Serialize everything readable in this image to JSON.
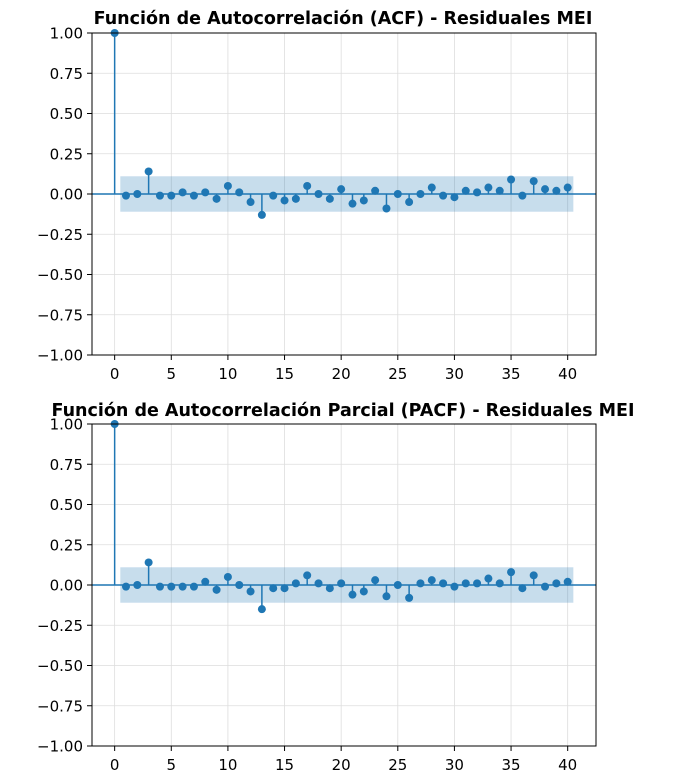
{
  "colors": {
    "series": "#1f77b4",
    "band": "#1f77b4",
    "grid": "#dddddd"
  },
  "chart_data": [
    {
      "type": "stem",
      "title": "Función de Autocorrelación (ACF) - Residuales MEI",
      "xlabel": "",
      "ylabel": "",
      "xlim": [
        -2,
        42.5
      ],
      "ylim": [
        -1.0,
        1.0
      ],
      "grid": true,
      "x_ticks": [
        "0",
        "5",
        "10",
        "15",
        "20",
        "25",
        "30",
        "35",
        "40"
      ],
      "y_ticks": [
        "1.00",
        "0.75",
        "0.50",
        "0.25",
        "0.00",
        "−0.25",
        "−0.50",
        "−0.75",
        "−1.00"
      ],
      "confidence_band": {
        "lower": -0.11,
        "upper": 0.11,
        "from_lag": 0.5,
        "to_lag": 40.5
      },
      "lags": [
        0,
        1,
        2,
        3,
        4,
        5,
        6,
        7,
        8,
        9,
        10,
        11,
        12,
        13,
        14,
        15,
        16,
        17,
        18,
        19,
        20,
        21,
        22,
        23,
        24,
        25,
        26,
        27,
        28,
        29,
        30,
        31,
        32,
        33,
        34,
        35,
        36,
        37,
        38,
        39,
        40
      ],
      "values": [
        1.0,
        -0.01,
        0.0,
        0.14,
        -0.01,
        -0.01,
        0.01,
        -0.01,
        0.01,
        -0.03,
        0.05,
        0.01,
        -0.05,
        -0.13,
        -0.01,
        -0.04,
        -0.03,
        0.05,
        0.0,
        -0.03,
        0.03,
        -0.06,
        -0.04,
        0.02,
        -0.09,
        0.0,
        -0.05,
        0.0,
        0.04,
        -0.01,
        -0.02,
        0.02,
        0.01,
        0.04,
        0.02,
        0.09,
        -0.01,
        0.08,
        0.03,
        0.02,
        0.04
      ]
    },
    {
      "type": "stem",
      "title": "Función de Autocorrelación Parcial (PACF) - Residuales MEI",
      "xlabel": "",
      "ylabel": "",
      "xlim": [
        -2,
        42.5
      ],
      "ylim": [
        -1.0,
        1.0
      ],
      "grid": true,
      "x_ticks": [
        "0",
        "5",
        "10",
        "15",
        "20",
        "25",
        "30",
        "35",
        "40"
      ],
      "y_ticks": [
        "1.00",
        "0.75",
        "0.50",
        "0.25",
        "0.00",
        "−0.25",
        "−0.50",
        "−0.75",
        "−1.00"
      ],
      "confidence_band": {
        "lower": -0.11,
        "upper": 0.11,
        "from_lag": 0.5,
        "to_lag": 40.5
      },
      "lags": [
        0,
        1,
        2,
        3,
        4,
        5,
        6,
        7,
        8,
        9,
        10,
        11,
        12,
        13,
        14,
        15,
        16,
        17,
        18,
        19,
        20,
        21,
        22,
        23,
        24,
        25,
        26,
        27,
        28,
        29,
        30,
        31,
        32,
        33,
        34,
        35,
        36,
        37,
        38,
        39,
        40
      ],
      "values": [
        1.0,
        -0.01,
        0.0,
        0.14,
        -0.01,
        -0.01,
        -0.01,
        -0.01,
        0.02,
        -0.03,
        0.05,
        0.0,
        -0.04,
        -0.15,
        -0.02,
        -0.02,
        0.01,
        0.06,
        0.01,
        -0.02,
        0.01,
        -0.06,
        -0.04,
        0.03,
        -0.07,
        0.0,
        -0.08,
        0.01,
        0.03,
        0.01,
        -0.01,
        0.01,
        0.01,
        0.04,
        0.01,
        0.08,
        -0.02,
        0.06,
        -0.01,
        0.01,
        0.02
      ]
    }
  ]
}
